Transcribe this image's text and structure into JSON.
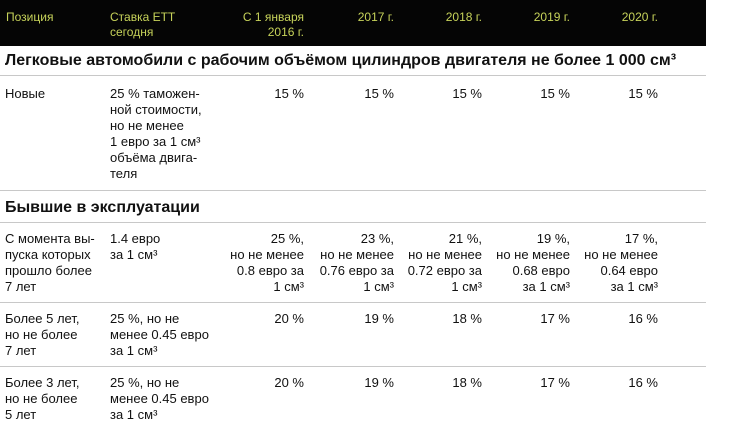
{
  "header": {
    "position": "Позиция",
    "current_rate": "Ставка ЕТТ\nсегодня",
    "from_2016": "С 1 января\n2016 г.",
    "y2017": "2017 г.",
    "y2018": "2018 г.",
    "y2019": "2019 г.",
    "y2020": "2020 г."
  },
  "section1": {
    "title": "Легковые автомобили с рабочим объёмом цилиндров двигателя не более 1 000 см³",
    "rows": [
      {
        "position": "Новые",
        "current_rate": "25 % таможен-\nной стоимости,\nно не менее\n1 евро за 1 см³\nобъёма двига-\nтеля",
        "from_2016": "15 %",
        "y2017": "15 %",
        "y2018": "15 %",
        "y2019": "15 %",
        "y2020": "15 %"
      }
    ]
  },
  "section2": {
    "title": "Бывшие в эксплуатации",
    "rows": [
      {
        "position": "С момента вы-\nпуска которых\nпрошло более\n7 лет",
        "current_rate": "1.4 евро\nза 1 см³",
        "from_2016": "25 %,\nно не менее\n0.8 евро за\n1 см³",
        "y2017": "23 %,\nно не менее\n0.76 евро за\n1 см³",
        "y2018": "21 %,\nно не менее\n0.72 евро за\n1 см³",
        "y2019": "19 %,\nно не менее\n0.68 евро\nза 1 см³",
        "y2020": "17 %,\nно не менее\n0.64 евро\nза 1 см³"
      },
      {
        "position": "Более 5 лет,\nно не более\n7 лет",
        "current_rate": "25 %, но не\nменее 0.45 евро\nза 1 см³",
        "from_2016": "20 %",
        "y2017": "19 %",
        "y2018": "18 %",
        "y2019": "17 %",
        "y2020": "16 %"
      },
      {
        "position": "Более 3 лет,\nно не более\n5 лет",
        "current_rate": "25 %, но не\nменее 0.45 евро\nза 1 см³",
        "from_2016": "20 %",
        "y2017": "19 %",
        "y2018": "18 %",
        "y2019": "17 %",
        "y2020": "16 %"
      }
    ]
  }
}
